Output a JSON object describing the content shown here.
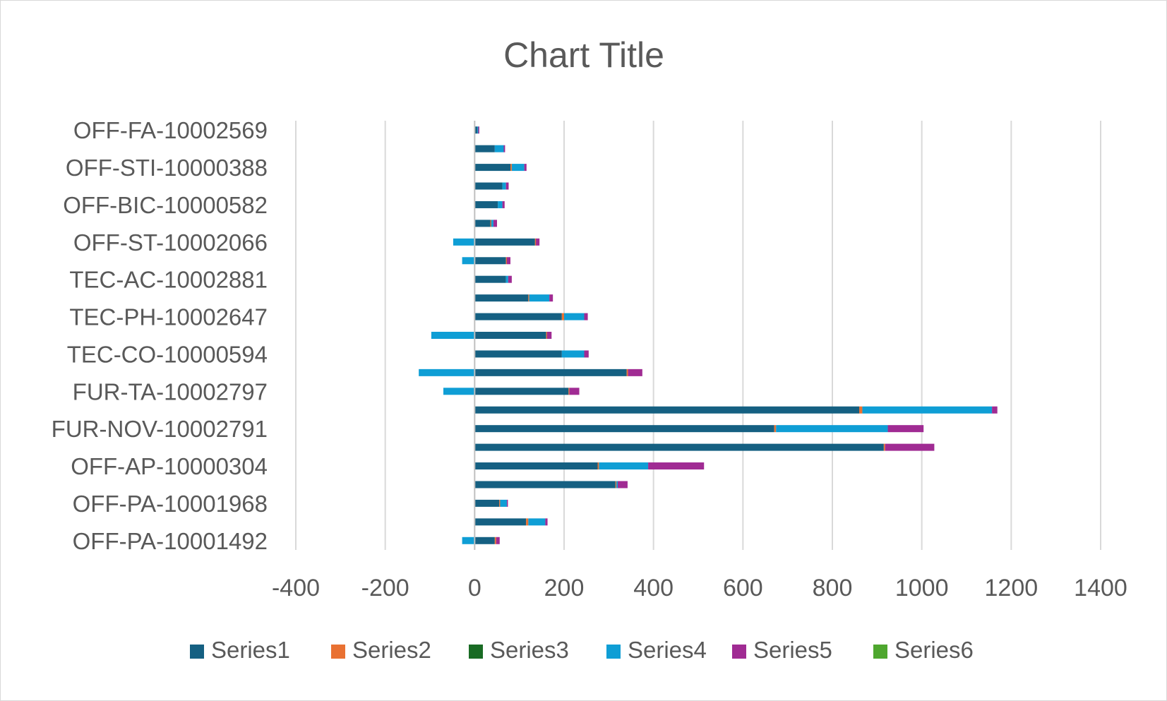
{
  "chart_data": {
    "type": "bar",
    "orientation": "horizontal",
    "stacked": true,
    "title": "Chart Title",
    "xlabel": "",
    "ylabel": "",
    "xlim": [
      -400,
      1400
    ],
    "x_ticks": [
      -400,
      -200,
      0,
      200,
      400,
      600,
      800,
      1000,
      1200,
      1400
    ],
    "grid": "vertical",
    "legend_position": "bottom",
    "categories": [
      "OFF-PA-10001492",
      "",
      "OFF-PA-10001968",
      "",
      "OFF-AP-10000304",
      "",
      "FUR-NOV-10002791",
      "",
      "FUR-TA-10002797",
      "",
      "TEC-CO-10000594",
      "",
      "TEC-PH-10002647",
      "",
      "TEC-AC-10002881",
      "",
      "OFF-ST-10002066",
      "",
      "OFF-BIC-10000582",
      "",
      "OFF-STI-10000388",
      "",
      "OFF-FA-10002569"
    ],
    "series": [
      {
        "name": "Series1",
        "color": "#156082",
        "values": [
          45,
          115,
          55,
          315,
          275,
          915,
          670,
          860,
          210,
          340,
          195,
          160,
          195,
          120,
          70,
          70,
          135,
          35,
          52,
          62,
          80,
          45,
          6
        ]
      },
      {
        "name": "Series2",
        "color": "#E97132",
        "values": [
          3,
          5,
          2,
          2,
          3,
          3,
          4,
          7,
          2,
          3,
          0,
          2,
          5,
          2,
          0,
          2,
          2,
          2,
          0,
          0,
          3,
          0,
          0
        ]
      },
      {
        "name": "Series3",
        "color": "#196B24",
        "values": [
          0,
          0,
          0,
          0,
          0,
          0,
          0,
          0,
          0,
          0,
          0,
          0,
          0,
          0,
          0,
          0,
          0,
          0,
          0,
          0,
          0,
          0,
          0
        ]
      },
      {
        "name": "Series4",
        "color": "#0F9ED5",
        "values": [
          -28,
          38,
          15,
          3,
          110,
          0,
          250,
          290,
          -70,
          -125,
          50,
          -97,
          45,
          45,
          5,
          -28,
          -48,
          5,
          10,
          8,
          28,
          20,
          2
        ]
      },
      {
        "name": "Series5",
        "color": "#A02B93",
        "values": [
          8,
          5,
          2,
          22,
          125,
          110,
          80,
          12,
          22,
          32,
          10,
          10,
          8,
          8,
          8,
          8,
          8,
          8,
          5,
          6,
          5,
          3,
          2
        ]
      },
      {
        "name": "Series6",
        "color": "#4EA72E",
        "values": [
          0,
          0,
          0,
          0,
          0,
          0,
          0,
          0,
          0,
          0,
          0,
          0,
          0,
          0,
          0,
          0,
          0,
          0,
          0,
          0,
          0,
          0,
          0
        ]
      }
    ]
  }
}
